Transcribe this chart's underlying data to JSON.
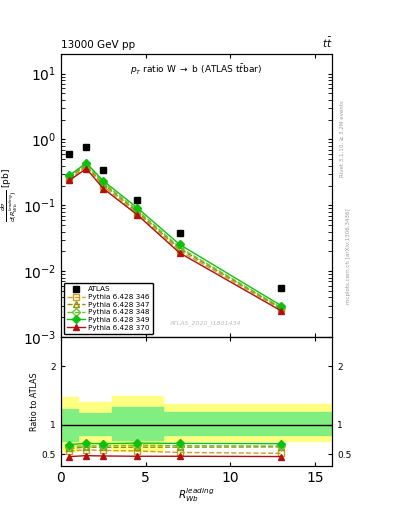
{
  "atlas_x": [
    0.5,
    1.5,
    2.5,
    4.5,
    7.0,
    13.0
  ],
  "atlas_y": [
    0.6,
    0.78,
    0.35,
    0.12,
    0.038,
    0.0055
  ],
  "py346_y": [
    0.25,
    0.385,
    0.195,
    0.075,
    0.0205,
    0.00265
  ],
  "py347_y": [
    0.27,
    0.4,
    0.21,
    0.08,
    0.022,
    0.00275
  ],
  "py348_y": [
    0.275,
    0.42,
    0.22,
    0.085,
    0.023,
    0.0028
  ],
  "py349_y": [
    0.285,
    0.44,
    0.235,
    0.092,
    0.0255,
    0.003
  ],
  "py370_y": [
    0.24,
    0.36,
    0.18,
    0.072,
    0.019,
    0.0025
  ],
  "ratio346_y": [
    0.555,
    0.575,
    0.565,
    0.555,
    0.53,
    0.515
  ],
  "ratio347_y": [
    0.6,
    0.62,
    0.615,
    0.62,
    0.62,
    0.625
  ],
  "ratio348_y": [
    0.63,
    0.645,
    0.64,
    0.655,
    0.645,
    0.64
  ],
  "ratio349_y": [
    0.665,
    0.685,
    0.68,
    0.69,
    0.685,
    0.68
  ],
  "ratio370_y": [
    0.46,
    0.475,
    0.47,
    0.465,
    0.465,
    0.46
  ],
  "band_x_step": [
    0.0,
    1.0,
    1.0,
    3.0,
    3.0,
    6.0,
    6.0,
    16.0
  ],
  "green_lo": [
    0.72,
    0.72,
    0.82,
    0.82,
    0.75,
    0.75,
    0.82,
    0.82
  ],
  "green_hi": [
    1.28,
    1.28,
    1.2,
    1.2,
    1.3,
    1.3,
    1.22,
    1.22
  ],
  "yellow_lo": [
    0.55,
    0.55,
    0.68,
    0.68,
    0.55,
    0.55,
    0.72,
    0.72
  ],
  "yellow_hi": [
    1.48,
    1.48,
    1.4,
    1.4,
    1.5,
    1.5,
    1.35,
    1.35
  ],
  "color346": "#c8a020",
  "color347": "#909000",
  "color348": "#70c030",
  "color349": "#10c010",
  "color370": "#b01010",
  "ylim_main": [
    0.001,
    20
  ],
  "ylim_ratio": [
    0.3,
    2.5
  ],
  "xlim": [
    0,
    16
  ],
  "title_top": "13000 GeV pp",
  "title_top_right": "$t\\bar{t}$",
  "plot_title": "$p_T$ ratio W $\\rightarrow$ b (ATLAS t$\\bar{t}$bar)",
  "ylabel_ratio": "Ratio to ATLAS",
  "xlabel": "$R_{Wb}^{leading}$",
  "watermark": "ATLAS_2020_I1801434",
  "right_label1": "Rivet 3.1.10, ≥ 3.2M events",
  "right_label2": "mcplots.cern.ch [arXiv:1306.3436]",
  "labels": [
    "ATLAS",
    "Pythia 6.428 346",
    "Pythia 6.428 347",
    "Pythia 6.428 348",
    "Pythia 6.428 349",
    "Pythia 6.428 370"
  ]
}
